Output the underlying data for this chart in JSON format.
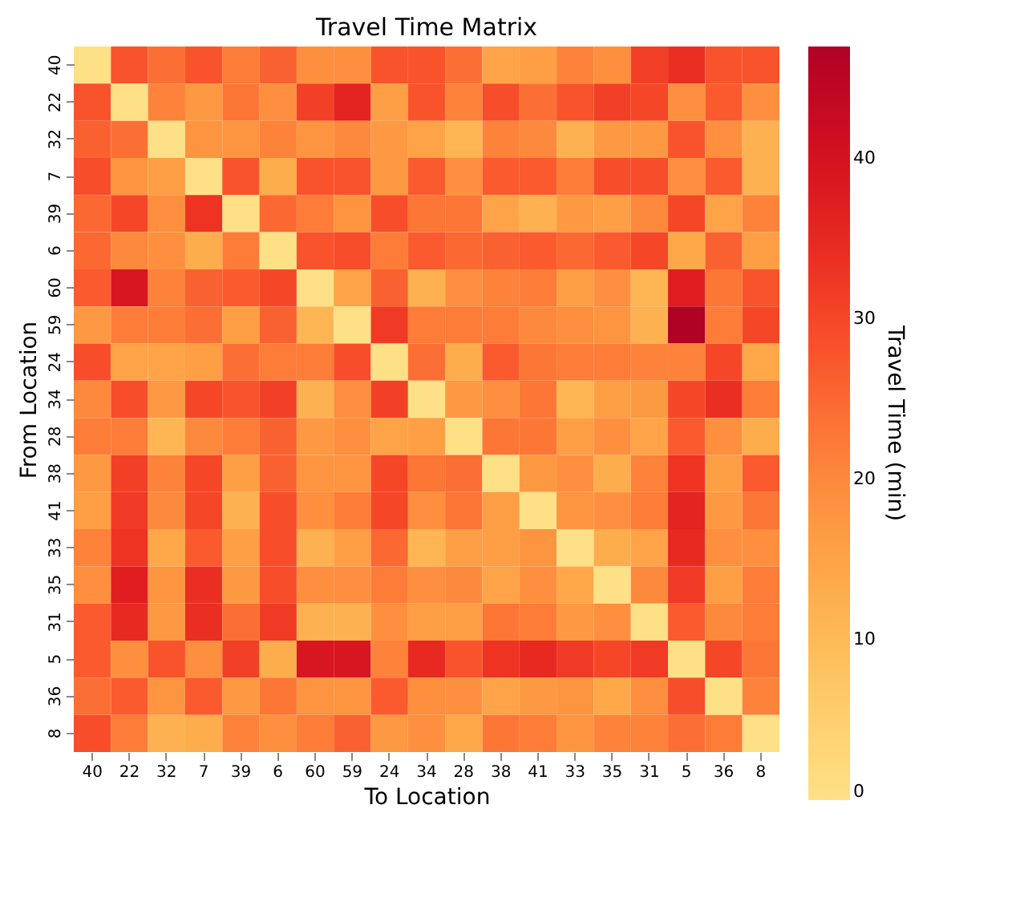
{
  "chart_data": {
    "type": "heatmap",
    "title": "Travel Time Matrix",
    "xlabel": "To Location",
    "ylabel": "From Location",
    "clabel": "Travel Time (min)",
    "categories": [
      "40",
      "22",
      "32",
      "7",
      "39",
      "6",
      "60",
      "59",
      "24",
      "34",
      "28",
      "38",
      "41",
      "33",
      "35",
      "31",
      "5",
      "36",
      "8"
    ],
    "y_categories": [
      "40",
      "22",
      "32",
      "7",
      "39",
      "6",
      "60",
      "59",
      "24",
      "34",
      "28",
      "38",
      "41",
      "33",
      "35",
      "31",
      "5",
      "36",
      "8"
    ],
    "cells": [
      [
        0,
        28,
        24,
        28,
        22,
        26,
        19,
        19,
        28,
        28,
        24,
        15,
        16,
        21,
        19,
        31,
        34,
        28,
        28
      ],
      [
        28,
        0,
        21,
        17,
        23,
        19,
        31,
        36,
        16,
        28,
        21,
        29,
        24,
        28,
        31,
        30,
        19,
        27,
        19
      ],
      [
        26,
        24,
        0,
        18,
        18,
        21,
        18,
        20,
        17,
        15,
        11,
        21,
        20,
        12,
        17,
        17,
        28,
        19,
        12
      ],
      [
        29,
        18,
        16,
        0,
        28,
        13,
        28,
        28,
        17,
        27,
        19,
        27,
        27,
        22,
        29,
        29,
        19,
        27,
        12
      ],
      [
        25,
        30,
        19,
        33,
        0,
        25,
        22,
        18,
        29,
        23,
        23,
        15,
        12,
        17,
        16,
        20,
        30,
        15,
        21
      ],
      [
        25,
        20,
        19,
        13,
        22,
        0,
        28,
        29,
        22,
        27,
        25,
        26,
        27,
        25,
        27,
        30,
        14,
        26,
        16
      ],
      [
        27,
        39,
        21,
        26,
        27,
        30,
        0,
        15,
        26,
        12,
        19,
        21,
        22,
        16,
        19,
        11,
        37,
        23,
        28
      ],
      [
        17,
        22,
        22,
        24,
        16,
        26,
        11,
        0,
        32,
        22,
        22,
        22,
        20,
        19,
        18,
        12,
        47,
        22,
        30
      ],
      [
        29,
        15,
        15,
        16,
        24,
        22,
        22,
        29,
        0,
        24,
        13,
        27,
        23,
        22,
        22,
        21,
        21,
        30,
        14
      ],
      [
        20,
        29,
        17,
        30,
        28,
        31,
        12,
        19,
        31,
        0,
        17,
        19,
        23,
        11,
        16,
        17,
        30,
        34,
        22
      ],
      [
        22,
        22,
        11,
        20,
        22,
        26,
        17,
        19,
        15,
        16,
        0,
        23,
        23,
        16,
        19,
        15,
        27,
        19,
        13
      ],
      [
        17,
        31,
        21,
        30,
        16,
        26,
        18,
        18,
        30,
        23,
        24,
        0,
        17,
        19,
        13,
        21,
        33,
        16,
        27
      ],
      [
        16,
        32,
        20,
        30,
        12,
        29,
        19,
        22,
        30,
        19,
        23,
        16,
        0,
        18,
        19,
        22,
        36,
        17,
        23
      ],
      [
        21,
        33,
        14,
        27,
        16,
        29,
        12,
        16,
        25,
        11,
        16,
        16,
        18,
        0,
        13,
        15,
        35,
        19,
        19
      ],
      [
        19,
        37,
        18,
        34,
        17,
        29,
        19,
        19,
        22,
        19,
        20,
        15,
        19,
        14,
        0,
        20,
        32,
        16,
        22
      ],
      [
        27,
        35,
        17,
        34,
        24,
        32,
        12,
        12,
        19,
        16,
        16,
        23,
        22,
        17,
        19,
        0,
        27,
        20,
        22
      ],
      [
        27,
        19,
        28,
        19,
        31,
        13,
        39,
        39,
        21,
        35,
        28,
        33,
        35,
        32,
        30,
        32,
        0,
        30,
        23
      ],
      [
        24,
        27,
        18,
        27,
        17,
        23,
        18,
        18,
        27,
        19,
        19,
        15,
        17,
        18,
        14,
        19,
        29,
        0,
        21
      ],
      [
        29,
        22,
        12,
        13,
        21,
        19,
        22,
        26,
        17,
        19,
        14,
        23,
        22,
        18,
        21,
        21,
        24,
        22,
        0
      ]
    ],
    "clim": [
      0,
      47
    ],
    "cticks": [
      0,
      10,
      20,
      30,
      40
    ]
  }
}
